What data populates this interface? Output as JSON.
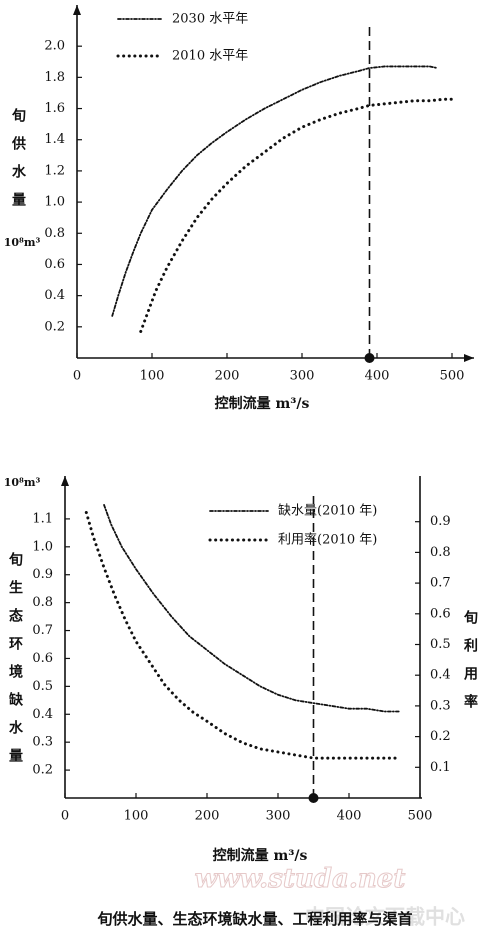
{
  "chart_data": [
    {
      "type": "line",
      "x_label": "控制流量 m³/s",
      "y_label": "旬供水量",
      "y_unit": "10⁸m³",
      "xlim": [
        0,
        520
      ],
      "ylim": [
        0,
        2.2
      ],
      "xticks": [
        0,
        100,
        200,
        300,
        400,
        500
      ],
      "yticks": [
        0.2,
        0.4,
        0.6,
        0.8,
        {
          "value": 1,
          "label": "1.0"
        },
        1.2,
        1.4,
        1.6,
        1.8,
        {
          "value": 2,
          "label": "2.0"
        }
      ],
      "legend": "upper left",
      "vline": 390,
      "series": [
        {
          "name": "2030 水平年",
          "style": "dash-dot",
          "color": "#111111",
          "x": [
            47,
            55,
            65,
            75,
            85,
            100,
            120,
            140,
            160,
            180,
            200,
            225,
            250,
            275,
            300,
            325,
            350,
            375,
            390,
            410,
            430,
            450,
            470,
            480
          ],
          "values": [
            0.27,
            0.4,
            0.55,
            0.68,
            0.8,
            0.95,
            1.08,
            1.2,
            1.3,
            1.38,
            1.45,
            1.53,
            1.6,
            1.66,
            1.72,
            1.77,
            1.81,
            1.84,
            1.86,
            1.87,
            1.87,
            1.87,
            1.87,
            1.86
          ]
        },
        {
          "name": "2010 水平年",
          "style": "dotted",
          "color": "#111111",
          "x": [
            85,
            95,
            105,
            120,
            140,
            160,
            180,
            200,
            225,
            250,
            275,
            300,
            325,
            350,
            375,
            390,
            410,
            430,
            450,
            470,
            490,
            500
          ],
          "values": [
            0.17,
            0.3,
            0.43,
            0.58,
            0.75,
            0.9,
            1.02,
            1.12,
            1.23,
            1.32,
            1.41,
            1.48,
            1.53,
            1.57,
            1.6,
            1.62,
            1.63,
            1.64,
            1.65,
            1.65,
            1.66,
            1.66
          ]
        }
      ]
    },
    {
      "type": "line",
      "x_label": "控制流量 m³/s",
      "y_label": "旬生态环境缺水量",
      "y_unit": "10⁸m³",
      "y2_label": "旬利用率",
      "xlim": [
        0,
        500
      ],
      "ylim": [
        0.1,
        1.2
      ],
      "y2lim": [
        0,
        1.0
      ],
      "xticks": [
        0,
        100,
        200,
        300,
        400,
        500
      ],
      "yticks": [
        0.2,
        0.3,
        0.4,
        0.5,
        0.6,
        0.7,
        0.8,
        0.9,
        {
          "value": 1,
          "label": "1.0"
        },
        1.1
      ],
      "y2ticks": [
        0.1,
        0.2,
        0.3,
        0.4,
        0.5,
        0.6,
        0.7,
        0.8,
        0.9
      ],
      "legend": "upper right",
      "vline": 350,
      "series": [
        {
          "name": "缺水量(2010 年)",
          "style": "dash-dot",
          "color": "#111111",
          "x": [
            55,
            65,
            80,
            100,
            125,
            150,
            175,
            200,
            225,
            250,
            275,
            300,
            325,
            350,
            375,
            400,
            425,
            450,
            470
          ],
          "values": [
            1.15,
            1.08,
            1.0,
            0.92,
            0.83,
            0.75,
            0.68,
            0.63,
            0.58,
            0.54,
            0.5,
            0.47,
            0.45,
            0.44,
            0.43,
            0.42,
            0.42,
            0.41,
            0.41
          ]
        },
        {
          "name": "利用率(2010 年)",
          "style": "dotted",
          "color": "#111111",
          "axis": "y2",
          "x": [
            30,
            40,
            55,
            70,
            85,
            100,
            120,
            140,
            160,
            180,
            200,
            225,
            250,
            275,
            300,
            325,
            350,
            375,
            400,
            425,
            450,
            470
          ],
          "values": [
            0.93,
            0.85,
            0.75,
            0.66,
            0.58,
            0.51,
            0.44,
            0.37,
            0.32,
            0.28,
            0.25,
            0.21,
            0.18,
            0.16,
            0.15,
            0.14,
            0.13,
            0.13,
            0.13,
            0.13,
            0.13,
            0.13
          ]
        }
      ]
    }
  ],
  "caption": "旬供水量、生态环境缺水量、工程利用率与渠首",
  "watermark": {
    "url": "www.studa.net",
    "site": "中国论文下载中心"
  }
}
